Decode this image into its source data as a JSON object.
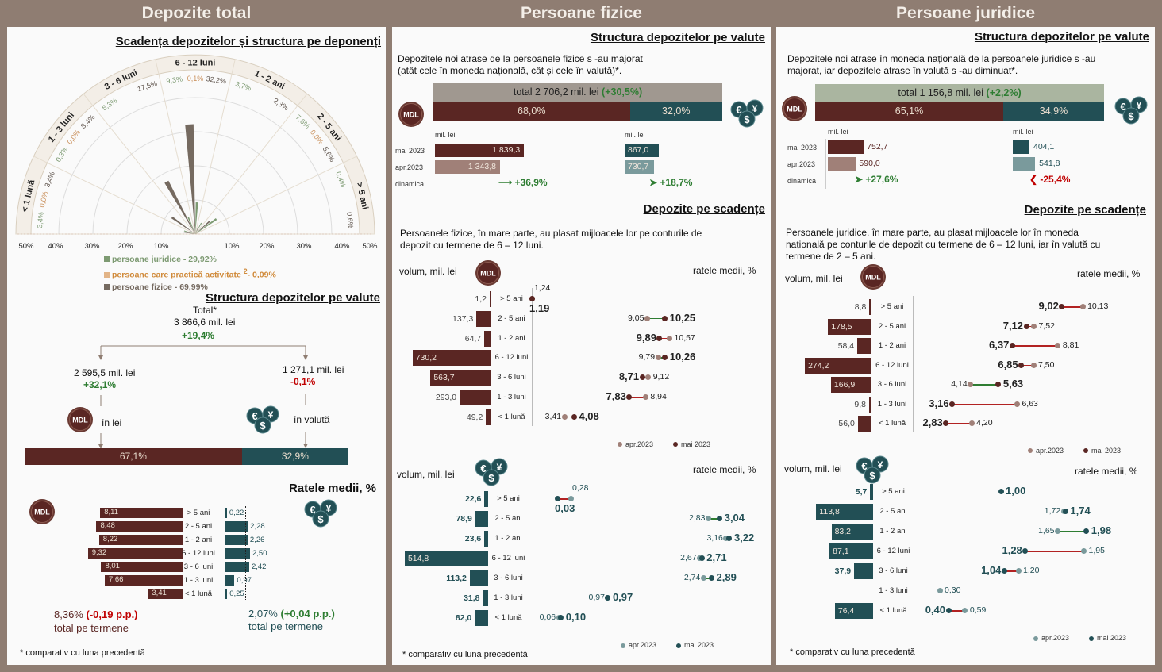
{
  "colors": {
    "mdl": "#5a2623",
    "mdl_light": "#a08078",
    "valuta": "#224f55",
    "valuta_light": "#7a9a9c",
    "juridice": "#7d9a72",
    "practica": "#d9a86c",
    "fizice": "#756a60",
    "increase": "#2e7d32",
    "decrease": "#b22222",
    "header_bg": "#8f7d72"
  },
  "icons": {
    "mdl": "mdl-coin-icon",
    "mdl_label": "MDL",
    "valuta": "currency-coins-icon",
    "valuta_glyphs": [
      "€",
      "¥",
      "$"
    ]
  },
  "headers": [
    "Depozite total",
    "Persoane fizice",
    "Persoane juridice"
  ],
  "left": {
    "polar_title": "Scadența depozitelor și structura pe deponenți",
    "legend": [
      {
        "label": "persoane juridice - 29,92%"
      },
      {
        "label": "persoane care practică activitate",
        "sup": "2",
        "suffix": "- 0,09%"
      },
      {
        "label": "persoane fizice - 69,99%"
      }
    ],
    "struct_title": "Structura depozitelor pe valute",
    "total_label": "Total*",
    "total_value": "3 866,6 mil. lei",
    "total_change": "+19,4%",
    "lei_value": "2 595,5 mil. lei",
    "lei_change": "+32,1%",
    "lei_label": "în lei",
    "val_value": "1 271,1 mil. lei",
    "val_change": "-0,1%",
    "val_label": "în valută",
    "share_lei": "67,1%",
    "share_val": "32,9%",
    "share_lei_pct": 67.1,
    "rates_title": "Ratele medii, %",
    "mdl_total": "8,36%",
    "mdl_total_change": "(-0,19 p.p.)",
    "val_total": "2,07%",
    "val_total_change": "(+0,04 p.p.)",
    "total_caption": "total pe termene",
    "footnote": "* comparativ cu luna precedentă"
  },
  "middle": {
    "title1": "Structura depozitelor pe valute",
    "intro": [
      "Depozitele noi atrase de la persoanele fizice s -au majorat",
      "(atât cele în moneda națională, cât și cele în valută)*."
    ],
    "total": "total 2 706,2 mil. lei",
    "total_change": "(+30,5%)",
    "share_lei": "68,0%",
    "share_val": "32,0%",
    "share_lei_pct": 68.0,
    "unit": "mil. lei",
    "rows": [
      "mai 2023",
      "apr.2023",
      "dinamica"
    ],
    "lei_dyn": "+36,9%",
    "val_dyn": "+18,7%",
    "title2": "Depozite pe scadențe",
    "intro2": [
      "Persoanele fizice, în mare parte, au plasat mijloacele lor pe conturile de",
      "depozit cu termene de 6 – 12 luni."
    ],
    "vol_label": "volum, mil. lei",
    "rate_label": "ratele medii, %",
    "footnote": "* comparativ cu luna precedentă"
  },
  "right": {
    "title1": "Structura depozitelor pe valute",
    "intro": [
      "Depozitele noi atrase în moneda națională de la persoanele juridice s -au",
      "majorat, iar depozitele atrase în valută s -au diminuat*."
    ],
    "total": "total 1 156,8 mil. lei",
    "total_change": "(+2,2%)",
    "share_lei": "65,1%",
    "share_val": "34,9%",
    "share_lei_pct": 65.1,
    "unit": "mil. lei",
    "rows": [
      "mai 2023",
      "apr.2023",
      "dinamica"
    ],
    "lei_dyn": "+27,6%",
    "val_dyn": "-25,4%",
    "title2": "Depozite pe scadențe",
    "intro2": [
      "Persoanele juridice, în mare parte, au plasat mijloacele lor în moneda",
      "națională pe conturile de depozit cu termene de 6 – 12 luni, iar în valută cu",
      "termene de 2 – 5 ani."
    ],
    "vol_label": "volum, mil. lei",
    "rate_label": "ratele medii, %",
    "footnote": "* comparativ cu luna precedentă"
  },
  "legend_dates": [
    "apr.2023",
    "mai 2023"
  ],
  "chart_data": [
    {
      "id": "polar",
      "type": "bar",
      "polar": true,
      "unit": "%",
      "categories": [
        "< 1 lună",
        "1 - 3 luni",
        "3 - 6 luni",
        "6 - 12 luni",
        "1 - 2 ani",
        "2 - 5 ani",
        "> 5 ani"
      ],
      "ticks": [
        "50%",
        "40%",
        "30%",
        "20%",
        "10%",
        "10%",
        "20%",
        "30%",
        "40%",
        "50%"
      ],
      "ylim": [
        0,
        50
      ],
      "series": [
        {
          "name": "persoane juridice - 29,92%",
          "values": [
            3.4,
            0.3,
            5.3,
            9.3,
            3.7,
            7.6,
            0.4
          ]
        },
        {
          "name": "persoane care practică activitate - 0,09%",
          "values": [
            0.0,
            0.0,
            null,
            0.1,
            null,
            0.0,
            null
          ]
        },
        {
          "name": "persoane fizice - 69,99%",
          "values": [
            3.4,
            8.4,
            17.5,
            32.2,
            2.3,
            5.6,
            0.6
          ]
        }
      ]
    },
    {
      "id": "left-rates",
      "type": "bar",
      "title": "Ratele medii, %",
      "categories": [
        "> 5 ani",
        "2 - 5 ani",
        "1 - 2 ani",
        "6 - 12 luni",
        "3 - 6 luni",
        "1 - 3 luni",
        "< 1 lună"
      ],
      "series": [
        {
          "name": "MDL",
          "values": [
            8.11,
            8.48,
            8.22,
            9.32,
            8.01,
            7.66,
            3.41
          ]
        },
        {
          "name": "valută",
          "values": [
            0.22,
            2.28,
            2.26,
            2.5,
            2.42,
            0.97,
            0.25
          ]
        }
      ],
      "averages": [
        8.36,
        2.07
      ]
    },
    {
      "id": "fizice-monthly",
      "type": "bar",
      "categories": [
        "mai 2023",
        "apr.2023"
      ],
      "series": [
        {
          "name": "MDL",
          "values": [
            1839.3,
            1343.8
          ]
        },
        {
          "name": "valută",
          "values": [
            867.0,
            730.7
          ]
        }
      ]
    },
    {
      "id": "juridice-monthly",
      "type": "bar",
      "categories": [
        "mai 2023",
        "apr.2023"
      ],
      "series": [
        {
          "name": "MDL",
          "values": [
            752.7,
            590.0
          ]
        },
        {
          "name": "valută",
          "values": [
            404.1,
            541.8
          ]
        }
      ]
    },
    {
      "id": "fizice-mdl",
      "type": "bar",
      "currency": "MDL",
      "categories": [
        "> 5 ani",
        "2 - 5 ani",
        "1 - 2 ani",
        "6 - 12 luni",
        "3 - 6 luni",
        "1 - 3 luni",
        "< 1 lună"
      ],
      "volume": [
        1.2,
        137.3,
        64.7,
        730.2,
        563.7,
        293.0,
        49.2
      ],
      "rates": {
        "apr.2023": [
          1.24,
          9.05,
          10.57,
          9.79,
          9.12,
          8.94,
          3.41
        ],
        "mai 2023": [
          1.19,
          10.25,
          9.89,
          10.26,
          8.71,
          7.83,
          4.08
        ]
      }
    },
    {
      "id": "fizice-val",
      "type": "bar",
      "currency": "valută",
      "categories": [
        "> 5 ani",
        "2 - 5 ani",
        "1 - 2 ani",
        "6 - 12 luni",
        "3 - 6 luni",
        "1 - 3 luni",
        "< 1 lună"
      ],
      "volume": [
        22.6,
        78.9,
        23.6,
        514.8,
        113.2,
        31.8,
        82.0
      ],
      "rates": {
        "apr.2023": [
          0.28,
          2.83,
          3.16,
          2.67,
          2.74,
          0.97,
          0.06
        ],
        "mai 2023": [
          0.03,
          3.04,
          3.22,
          2.71,
          2.89,
          0.97,
          0.1
        ]
      }
    },
    {
      "id": "juridice-mdl",
      "type": "bar",
      "currency": "MDL",
      "categories": [
        "> 5 ani",
        "2 - 5 ani",
        "1 - 2 ani",
        "6 - 12 luni",
        "3 - 6 luni",
        "1 - 3 luni",
        "< 1 lună"
      ],
      "volume": [
        8.8,
        178.5,
        58.4,
        274.2,
        166.9,
        9.8,
        56.0
      ],
      "rates": {
        "apr.2023": [
          10.13,
          7.52,
          8.81,
          7.5,
          4.14,
          6.63,
          4.2
        ],
        "mai 2023": [
          9.02,
          7.12,
          6.37,
          6.85,
          5.63,
          3.16,
          2.83
        ]
      }
    },
    {
      "id": "juridice-val",
      "type": "bar",
      "currency": "valută",
      "categories": [
        "> 5 ani",
        "2 - 5 ani",
        "1 - 2 ani",
        "6 - 12 luni",
        "3 - 6 luni",
        "1 - 3 luni",
        "< 1 lună"
      ],
      "volume": [
        5.7,
        113.8,
        83.2,
        87.1,
        37.9,
        null,
        76.4
      ],
      "rates": {
        "apr.2023": [
          null,
          1.72,
          1.65,
          1.95,
          1.2,
          0.3,
          0.59
        ],
        "mai 2023": [
          1.0,
          1.74,
          1.98,
          1.28,
          1.04,
          null,
          0.4
        ]
      }
    }
  ]
}
